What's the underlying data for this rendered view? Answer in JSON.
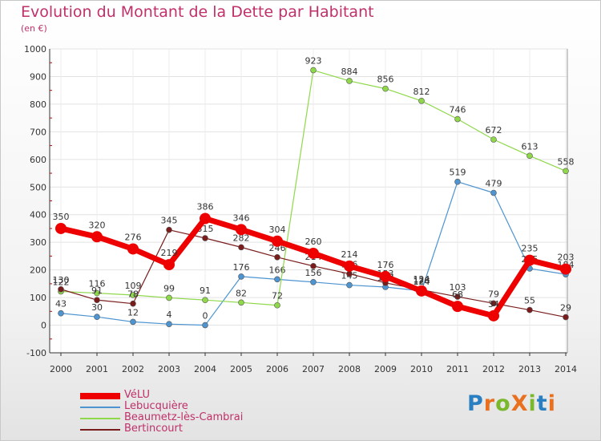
{
  "header": {
    "title": "Evolution du Montant de la Dette par Habitant",
    "subtitle": "(en €)"
  },
  "logo": {
    "text": "ProXiti",
    "colors": [
      "#2a7fc2",
      "#e8701e",
      "#7ab82c",
      "#e8701e",
      "#7ab82c",
      "#2a7fc2",
      "#e8701e"
    ]
  },
  "colors": {
    "title": "#c0306a",
    "axis": "#333333",
    "grid": "#dddddd"
  },
  "chart_data": {
    "type": "line",
    "title": "Evolution du Montant de la Dette par Habitant",
    "ylabel": "(en €)",
    "xlabel": "",
    "ylim": [
      -100,
      1000
    ],
    "yticks": [
      -100,
      0,
      100,
      200,
      300,
      400,
      500,
      600,
      700,
      800,
      900,
      1000
    ],
    "x": [
      "2000",
      "2001",
      "2002",
      "2003",
      "2004",
      "2005",
      "2006",
      "2007",
      "2008",
      "2009",
      "2010",
      "2011",
      "2012",
      "2013",
      "2014"
    ],
    "legend_position": "bottom-left",
    "series": [
      {
        "name": "VéLU",
        "color": "#ee0000",
        "width": 7,
        "marker": 7,
        "values": [
          350,
          320,
          276,
          219,
          386,
          346,
          304,
          260,
          214,
          176,
          124,
          68,
          34,
          235,
          203
        ]
      },
      {
        "name": "Lebucquière",
        "color": "#4d94d0",
        "width": 1.2,
        "marker": 3.5,
        "values": [
          43,
          30,
          12,
          4,
          0,
          176,
          166,
          156,
          145,
          138,
          124,
          519,
          479,
          205,
          184
        ]
      },
      {
        "name": "Beaumetz-lès-Cambrai",
        "color": "#8fd84a",
        "width": 1.2,
        "marker": 3.5,
        "values": [
          122,
          116,
          109,
          99,
          91,
          82,
          72,
          923,
          884,
          856,
          812,
          746,
          672,
          613,
          558
        ]
      },
      {
        "name": "Bertincourt",
        "color": "#7a1c1c",
        "width": 1.2,
        "marker": 3.5,
        "values": [
          130,
          91,
          78,
          345,
          315,
          282,
          246,
          214,
          186,
          153,
          128,
          103,
          79,
          55,
          29
        ]
      }
    ]
  }
}
